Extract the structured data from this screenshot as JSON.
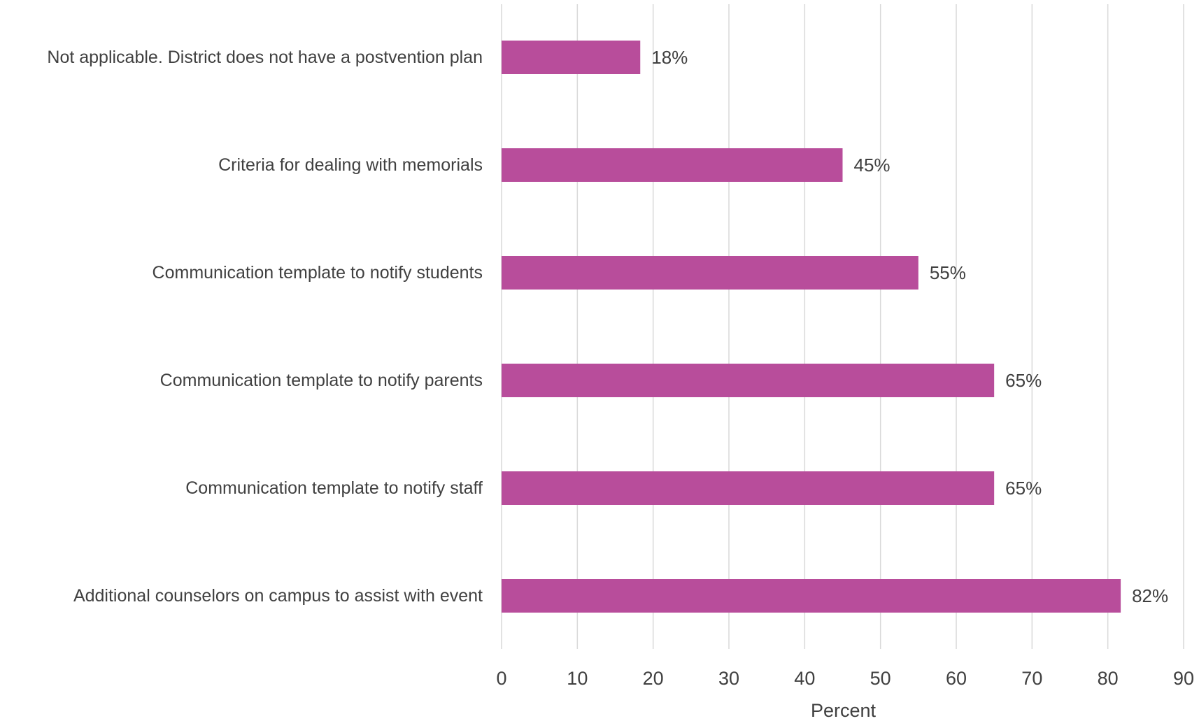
{
  "chart_data": {
    "type": "bar",
    "orientation": "horizontal",
    "categories": [
      "Not applicable. District does not have a postvention plan",
      "Criteria for dealing with memorials",
      "Communication template to notify students",
      "Communication template to notify parents",
      "Communication template to notify staff",
      "Additional counselors on campus to assist with event"
    ],
    "values": [
      18.3,
      45,
      55,
      65,
      65,
      81.7
    ],
    "data_labels": [
      "18%",
      "45%",
      "55%",
      "65%",
      "65%",
      "82%"
    ],
    "title": "",
    "xlabel": "Percent",
    "ylabel": "",
    "xlim": [
      0,
      90
    ],
    "xticks": [
      0,
      10,
      20,
      30,
      40,
      50,
      60,
      70,
      80,
      90
    ],
    "grid": "vertical",
    "legend": "none",
    "bar_color": "#b84d9b"
  }
}
